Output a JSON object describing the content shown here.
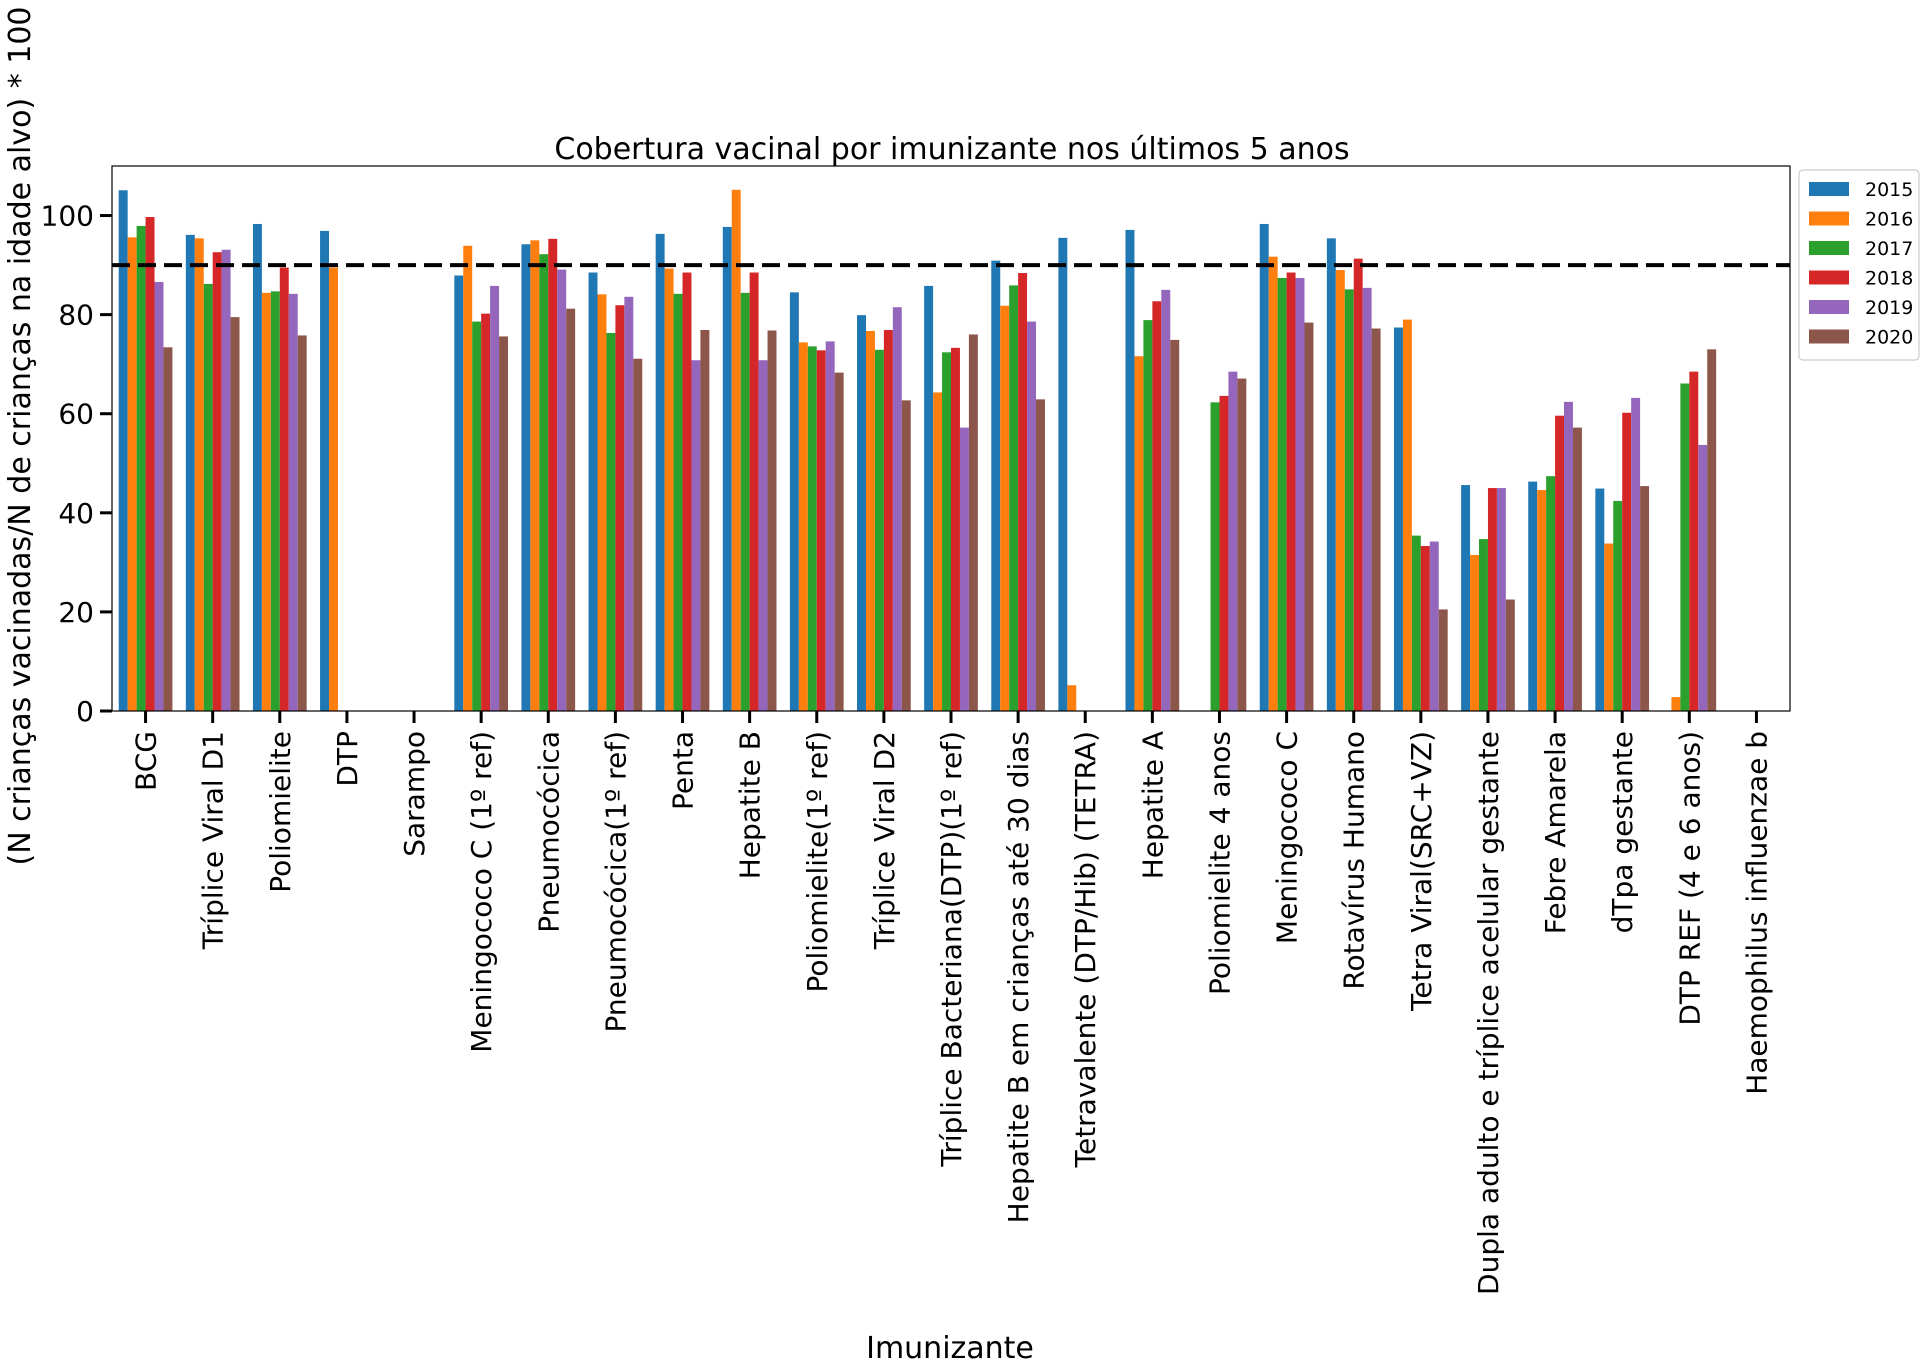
{
  "chart_data": {
    "type": "bar",
    "title": "Cobertura vacinal por imunizante nos últimos 5 anos",
    "xlabel": "Imunizante",
    "ylabel": "(N crianças vacinadas/N de crianças na idade alvo) * 100",
    "ylim": [
      0,
      110
    ],
    "yticks": [
      0,
      20,
      40,
      60,
      80,
      100
    ],
    "reference_line": 90,
    "legend_position": "outside top-right",
    "categories": [
      "BCG",
      "Tríplice Viral  D1",
      "Poliomielite",
      "DTP",
      "Sarampo",
      "Meningococo C (1º ref)",
      "Pneumocócica",
      "Pneumocócica(1º ref)",
      "Penta",
      "Hepatite B",
      "Poliomielite(1º ref)",
      "Tríplice Viral  D2",
      "Tríplice Bacteriana(DTP)(1º ref)",
      "Hepatite B  em crianças até 30 dias",
      "Tetravalente (DTP/Hib) (TETRA)",
      "Hepatite A",
      "Poliomielite 4 anos",
      "Meningococo C",
      "Rotavírus Humano",
      "Tetra Viral(SRC+VZ)",
      "Dupla adulto e tríplice acelular gestante",
      "Febre Amarela",
      "dTpa gestante",
      "DTP REF (4 e 6 anos)",
      "Haemophilus influenzae b"
    ],
    "series": [
      {
        "name": "2015",
        "color": "#1f77b4",
        "values": [
          105.1,
          96.1,
          98.3,
          96.9,
          0,
          87.9,
          94.2,
          88.5,
          96.3,
          97.7,
          84.5,
          79.9,
          85.8,
          90.9,
          95.5,
          97.1,
          0,
          98.3,
          95.4,
          77.4,
          45.6,
          46.3,
          44.9,
          0,
          0
        ]
      },
      {
        "name": "2016",
        "color": "#ff7f0e",
        "values": [
          95.6,
          95.4,
          84.4,
          89.5,
          0,
          93.9,
          95.0,
          84.1,
          89.3,
          105.2,
          74.4,
          76.7,
          64.3,
          81.8,
          5.2,
          71.6,
          0,
          91.7,
          89.0,
          79.0,
          31.5,
          44.6,
          33.8,
          2.8,
          0
        ]
      },
      {
        "name": "2017",
        "color": "#2ca02c",
        "values": [
          97.9,
          86.2,
          84.7,
          0,
          0,
          78.6,
          92.2,
          76.3,
          84.2,
          84.4,
          73.6,
          72.9,
          72.4,
          85.9,
          0,
          78.9,
          62.3,
          87.4,
          85.1,
          35.4,
          34.7,
          47.4,
          42.4,
          66.1,
          0
        ]
      },
      {
        "name": "2018",
        "color": "#d62728",
        "values": [
          99.7,
          92.6,
          89.5,
          0,
          0,
          80.2,
          95.3,
          81.9,
          88.5,
          88.5,
          72.8,
          76.9,
          73.3,
          88.4,
          0,
          82.7,
          63.6,
          88.5,
          91.3,
          33.3,
          45.0,
          59.6,
          60.2,
          68.5,
          0
        ]
      },
      {
        "name": "2019",
        "color": "#9467bd",
        "values": [
          86.6,
          93.1,
          84.2,
          0,
          0,
          85.8,
          89.1,
          83.6,
          70.8,
          70.8,
          74.6,
          81.5,
          57.2,
          78.6,
          0,
          85.0,
          68.5,
          87.4,
          85.4,
          34.2,
          45.0,
          62.4,
          63.2,
          53.7,
          0
        ]
      },
      {
        "name": "2020",
        "color": "#8c564b",
        "values": [
          73.4,
          79.5,
          75.8,
          0,
          0,
          75.6,
          81.2,
          71.1,
          76.9,
          76.8,
          68.3,
          62.7,
          76.0,
          62.9,
          0,
          74.9,
          67.1,
          78.4,
          77.2,
          20.5,
          22.5,
          57.2,
          45.4,
          73.0,
          0
        ]
      }
    ]
  }
}
